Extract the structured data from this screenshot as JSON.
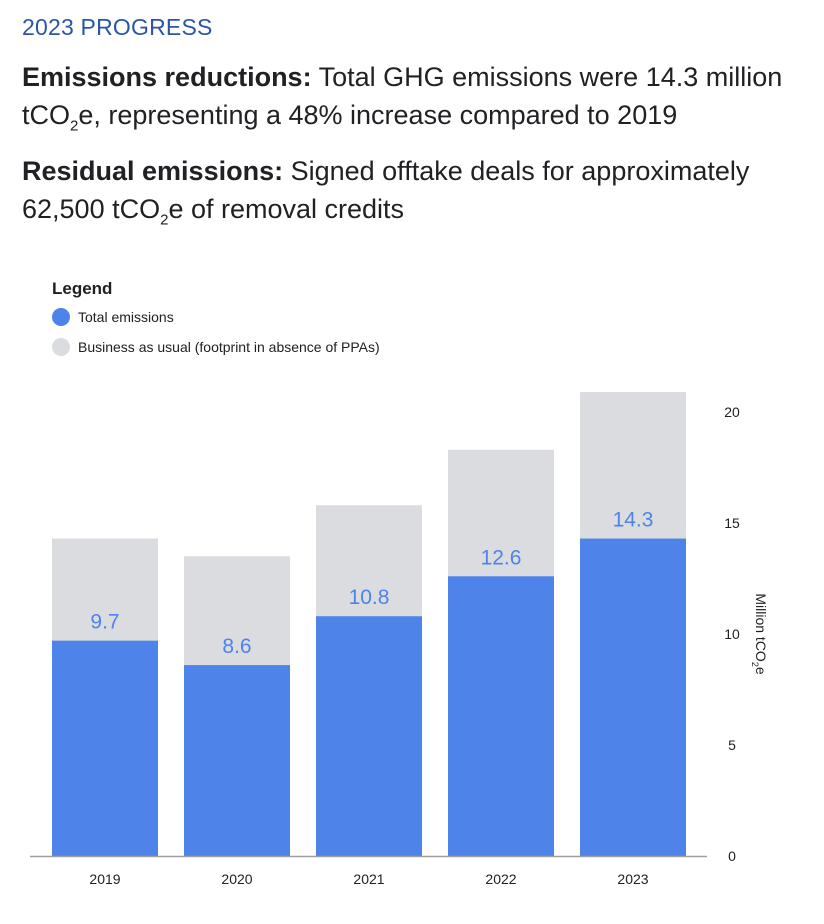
{
  "header": {
    "eyebrow": "2023 PROGRESS"
  },
  "paragraphs": [
    {
      "label": "Emissions reductions:",
      "text_a": " Total GHG emissions were 14.3 million tCO",
      "sub": "2",
      "text_b": "e, representing a 48% increase compared to 2019"
    },
    {
      "label": "Residual emissions:",
      "text_a": " Signed offtake deals for approximately 62,500 tCO",
      "sub": "2",
      "text_b": "e of removal credits"
    }
  ],
  "chart_data": {
    "type": "bar",
    "legend_title": "Legend",
    "legend_placement": "top-left",
    "categories": [
      "2019",
      "2020",
      "2021",
      "2022",
      "2023"
    ],
    "series": [
      {
        "name": "Total emissions",
        "values": [
          9.7,
          8.6,
          10.8,
          12.6,
          14.3
        ],
        "color": "#4e84ea",
        "data_labels": [
          "9.7",
          "8.6",
          "10.8",
          "12.6",
          "14.3"
        ]
      },
      {
        "name": "Business as usual (footprint in absence of PPAs)",
        "values": [
          14.3,
          13.5,
          15.8,
          18.3,
          20.9
        ],
        "color": "#dadce0"
      }
    ],
    "ylabel_main": "Million tCO",
    "ylabel_sub": "2",
    "ylabel_tail": "e",
    "yticks": [
      "0",
      "5",
      "10",
      "15",
      "20"
    ],
    "ylim": [
      0,
      20
    ],
    "y_axis_side": "right",
    "grid": false,
    "label_color": "#4e84ea"
  }
}
